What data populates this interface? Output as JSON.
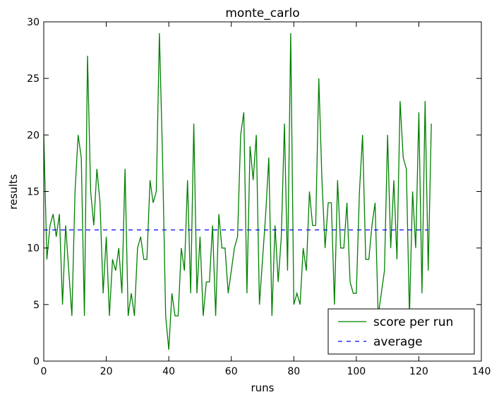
{
  "chart_data": {
    "type": "line",
    "title": "monte_carlo",
    "xlabel": "runs",
    "ylabel": "results",
    "xlim": [
      0,
      140
    ],
    "ylim": [
      0,
      30
    ],
    "xticks": [
      0,
      20,
      40,
      60,
      80,
      100,
      120,
      140
    ],
    "yticks": [
      0,
      5,
      10,
      15,
      20,
      25,
      30
    ],
    "grid": false,
    "legend_position": "bottom-right",
    "series": [
      {
        "name": "score per run",
        "color": "#008000",
        "style": "solid",
        "x": [
          0,
          1,
          2,
          3,
          4,
          5,
          6,
          7,
          8,
          9,
          10,
          11,
          12,
          13,
          14,
          15,
          16,
          17,
          18,
          19,
          20,
          21,
          22,
          23,
          24,
          25,
          26,
          27,
          28,
          29,
          30,
          31,
          32,
          33,
          34,
          35,
          36,
          37,
          38,
          39,
          40,
          41,
          42,
          43,
          44,
          45,
          46,
          47,
          48,
          49,
          50,
          51,
          52,
          53,
          54,
          55,
          56,
          57,
          58,
          59,
          60,
          61,
          62,
          63,
          64,
          65,
          66,
          67,
          68,
          69,
          70,
          71,
          72,
          73,
          74,
          75,
          76,
          77,
          78,
          79,
          80,
          81,
          82,
          83,
          84,
          85,
          86,
          87,
          88,
          89,
          90,
          91,
          92,
          93,
          94,
          95,
          96,
          97,
          98,
          99,
          100,
          101,
          102,
          103,
          104,
          105,
          106,
          107,
          108,
          109,
          110,
          111,
          112,
          113,
          114,
          115,
          116,
          117,
          118,
          119,
          120,
          121,
          122,
          123,
          124
        ],
        "values": [
          20,
          9,
          12,
          13,
          11,
          13,
          5,
          12,
          8,
          4,
          15,
          20,
          18,
          4,
          27,
          15,
          12,
          17,
          14,
          6,
          11,
          4,
          9,
          8,
          10,
          6,
          17,
          4,
          6,
          4,
          10,
          11,
          9,
          9,
          16,
          14,
          15,
          29,
          18,
          4,
          1,
          6,
          4,
          4,
          10,
          8,
          16,
          6,
          21,
          6,
          11,
          4,
          7,
          7,
          12,
          4,
          13,
          10,
          10,
          6,
          8,
          10,
          11,
          20,
          22,
          6,
          19,
          16,
          20,
          5,
          9,
          13,
          18,
          4,
          12,
          7,
          11,
          21,
          8,
          29,
          5,
          6,
          5,
          10,
          8,
          15,
          12,
          12,
          25,
          16,
          10,
          14,
          14,
          5,
          16,
          10,
          10,
          14,
          7,
          6,
          6,
          15,
          20,
          9,
          9,
          12,
          14,
          4,
          6,
          8,
          20,
          10,
          16,
          9,
          23,
          18,
          17,
          4,
          15,
          10,
          22,
          6,
          23,
          8,
          21
        ]
      },
      {
        "name": "average",
        "color": "#0000ff",
        "style": "dashed",
        "x": [
          0,
          123
        ],
        "values": [
          11.6,
          11.6
        ]
      }
    ]
  }
}
